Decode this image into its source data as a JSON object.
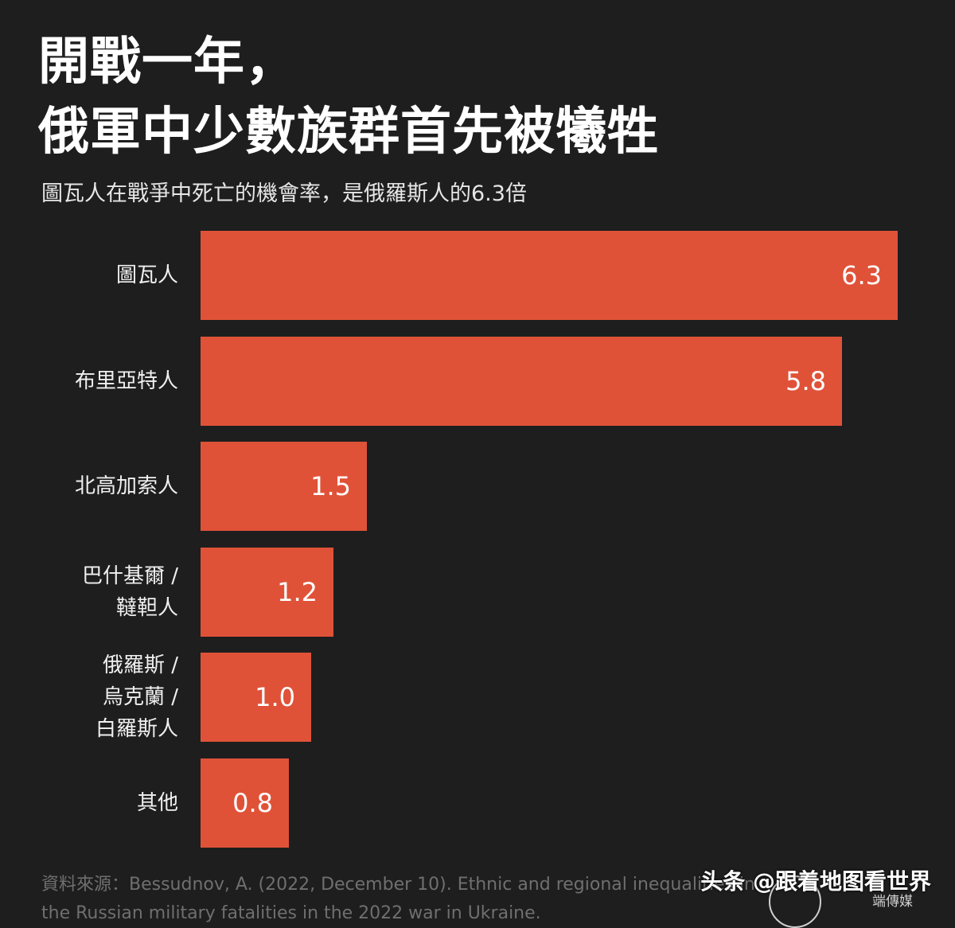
{
  "header": {
    "title": "開戰一年，\n俄軍中少數族群首先被犧牲",
    "subtitle": "圖瓦人在戰爭中死亡的機會率，是俄羅斯人的6.3倍"
  },
  "chart_data": {
    "type": "bar",
    "orientation": "horizontal",
    "title": "開戰一年，俄軍中少數族群首先被犧牲",
    "subtitle": "圖瓦人在戰爭中死亡的機會率，是俄羅斯人的6.3倍",
    "categories": [
      "圖瓦人",
      "布里亞特人",
      "北高加索人",
      "巴什基爾 /\n韃靼人",
      "俄羅斯 /\n烏克蘭 /\n白羅斯人",
      "其他"
    ],
    "values": [
      6.3,
      5.8,
      1.5,
      1.2,
      1.0,
      0.8
    ],
    "value_labels": [
      "6.3",
      "5.8",
      "1.5",
      "1.2",
      "1.0",
      "0.8"
    ],
    "xlim": [
      0,
      6.3
    ],
    "bar_color": "#e05238",
    "grid": false
  },
  "footer": {
    "source_line1": "資料來源：Bessudnov, A. (2022, December 10). Ethnic and regional inequalities in",
    "source_line2": "the Russian military fatalities in the 2022 war in Ukraine.",
    "watermark": "头条 @跟着地图看世界",
    "logo_text": "端傳媒"
  },
  "colors": {
    "background": "#1e1e1e",
    "bar": "#e05238",
    "text": "#ffffff",
    "source_text": "#6f6f6f"
  }
}
